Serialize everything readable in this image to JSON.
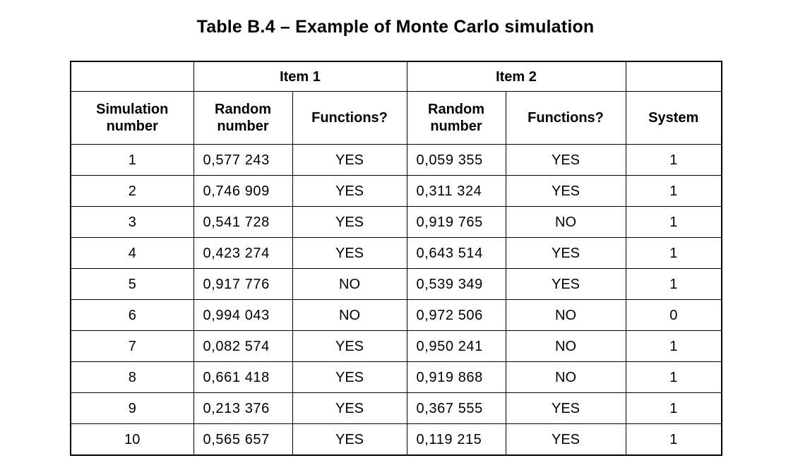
{
  "caption": "Table B.4 – Example of Monte Carlo simulation",
  "table": {
    "group_headers": {
      "item1": "Item 1",
      "item2": "Item 2"
    },
    "columns": [
      "Simulation number",
      "Random number",
      "Functions?",
      "Random number",
      "Functions?",
      "System"
    ],
    "rows": [
      [
        "1",
        "0,577 243",
        "YES",
        "0,059 355",
        "YES",
        "1"
      ],
      [
        "2",
        "0,746 909",
        "YES",
        "0,311 324",
        "YES",
        "1"
      ],
      [
        "3",
        "0,541 728",
        "YES",
        "0,919 765",
        "NO",
        "1"
      ],
      [
        "4",
        "0,423 274",
        "YES",
        "0,643 514",
        "YES",
        "1"
      ],
      [
        "5",
        "0,917 776",
        "NO",
        "0,539 349",
        "YES",
        "1"
      ],
      [
        "6",
        "0,994 043",
        "NO",
        "0,972 506",
        "NO",
        "0"
      ],
      [
        "7",
        "0,082 574",
        "YES",
        "0,950 241",
        "NO",
        "1"
      ],
      [
        "8",
        "0,661 418",
        "YES",
        "0,919 868",
        "NO",
        "1"
      ],
      [
        "9",
        "0,213 376",
        "YES",
        "0,367 555",
        "YES",
        "1"
      ],
      [
        "10",
        "0,565 657",
        "YES",
        "0,119 215",
        "YES",
        "1"
      ]
    ]
  }
}
